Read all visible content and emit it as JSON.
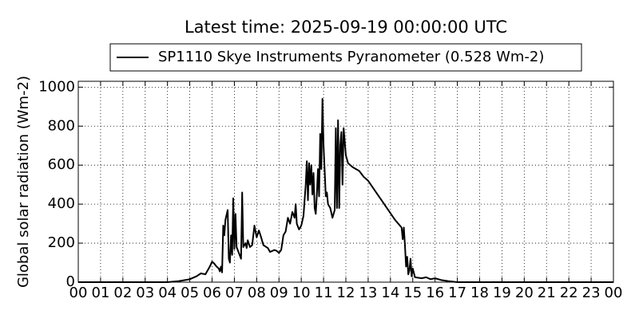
{
  "chart_data": {
    "type": "line",
    "title": "Latest time: 2025-09-19 00:00:00 UTC",
    "y_label": "Global solar radiation (Wm-2)",
    "x": [
      0,
      4.0,
      4.5,
      5.0,
      5.3,
      5.5,
      5.7,
      5.9,
      6.0,
      6.1,
      6.2,
      6.3,
      6.35,
      6.4,
      6.45,
      6.5,
      6.55,
      6.6,
      6.7,
      6.75,
      6.8,
      6.85,
      6.9,
      6.95,
      7.0,
      7.05,
      7.1,
      7.2,
      7.3,
      7.35,
      7.4,
      7.5,
      7.55,
      7.6,
      7.7,
      7.8,
      7.9,
      8.0,
      8.1,
      8.2,
      8.3,
      8.5,
      8.6,
      8.8,
      8.9,
      9.0,
      9.1,
      9.2,
      9.3,
      9.4,
      9.5,
      9.6,
      9.7,
      9.75,
      9.8,
      9.9,
      10.0,
      10.1,
      10.15,
      10.2,
      10.25,
      10.3,
      10.35,
      10.4,
      10.45,
      10.5,
      10.55,
      10.6,
      10.65,
      10.7,
      10.75,
      10.8,
      10.85,
      10.9,
      10.95,
      11.0,
      11.1,
      11.15,
      11.2,
      11.3,
      11.4,
      11.5,
      11.55,
      11.6,
      11.65,
      11.7,
      11.75,
      11.8,
      11.85,
      11.9,
      12.0,
      12.1,
      12.3,
      12.6,
      12.8,
      13.0,
      13.3,
      13.6,
      13.9,
      14.2,
      14.5,
      14.55,
      14.6,
      14.65,
      14.7,
      14.75,
      14.8,
      14.85,
      14.9,
      14.95,
      15.0,
      15.1,
      15.4,
      15.6,
      15.8,
      16.0,
      16.3,
      16.6,
      17.0,
      24
    ],
    "series": [
      {
        "name": "SP1110 Skye Instruments Pyranometer (0.528 Wm-2)",
        "color": "#000000",
        "values": [
          0,
          0,
          5,
          15,
          30,
          45,
          40,
          80,
          105,
          95,
          80,
          70,
          55,
          80,
          50,
          290,
          240,
          320,
          370,
          120,
          100,
          240,
          140,
          430,
          170,
          350,
          180,
          150,
          120,
          460,
          180,
          200,
          175,
          215,
          180,
          190,
          290,
          230,
          265,
          230,
          190,
          175,
          155,
          165,
          160,
          150,
          165,
          240,
          260,
          330,
          300,
          360,
          330,
          400,
          300,
          270,
          290,
          340,
          420,
          500,
          620,
          420,
          610,
          500,
          600,
          450,
          560,
          380,
          350,
          450,
          580,
          440,
          760,
          580,
          940,
          700,
          440,
          460,
          400,
          380,
          330,
          370,
          790,
          380,
          830,
          380,
          700,
          770,
          500,
          790,
          650,
          610,
          590,
          570,
          540,
          520,
          470,
          420,
          370,
          320,
          280,
          220,
          280,
          190,
          80,
          130,
          40,
          60,
          120,
          30,
          70,
          25,
          20,
          25,
          15,
          20,
          10,
          5,
          0,
          0
        ]
      }
    ],
    "xlim": [
      0,
      24
    ],
    "ylim": [
      0,
      1030
    ],
    "xticks": [
      {
        "value": 0,
        "label": "00"
      },
      {
        "value": 1,
        "label": "01"
      },
      {
        "value": 2,
        "label": "02"
      },
      {
        "value": 3,
        "label": "03"
      },
      {
        "value": 4,
        "label": "04"
      },
      {
        "value": 5,
        "label": "05"
      },
      {
        "value": 6,
        "label": "06"
      },
      {
        "value": 7,
        "label": "07"
      },
      {
        "value": 8,
        "label": "08"
      },
      {
        "value": 9,
        "label": "09"
      },
      10,
      11,
      12,
      13,
      14,
      15,
      16,
      17,
      18,
      19,
      20,
      21,
      22,
      23,
      {
        "value": 24,
        "label": "00"
      }
    ],
    "yticks": [
      0,
      200,
      400,
      600,
      800,
      1000
    ],
    "grid": true,
    "legend": "upper center"
  }
}
